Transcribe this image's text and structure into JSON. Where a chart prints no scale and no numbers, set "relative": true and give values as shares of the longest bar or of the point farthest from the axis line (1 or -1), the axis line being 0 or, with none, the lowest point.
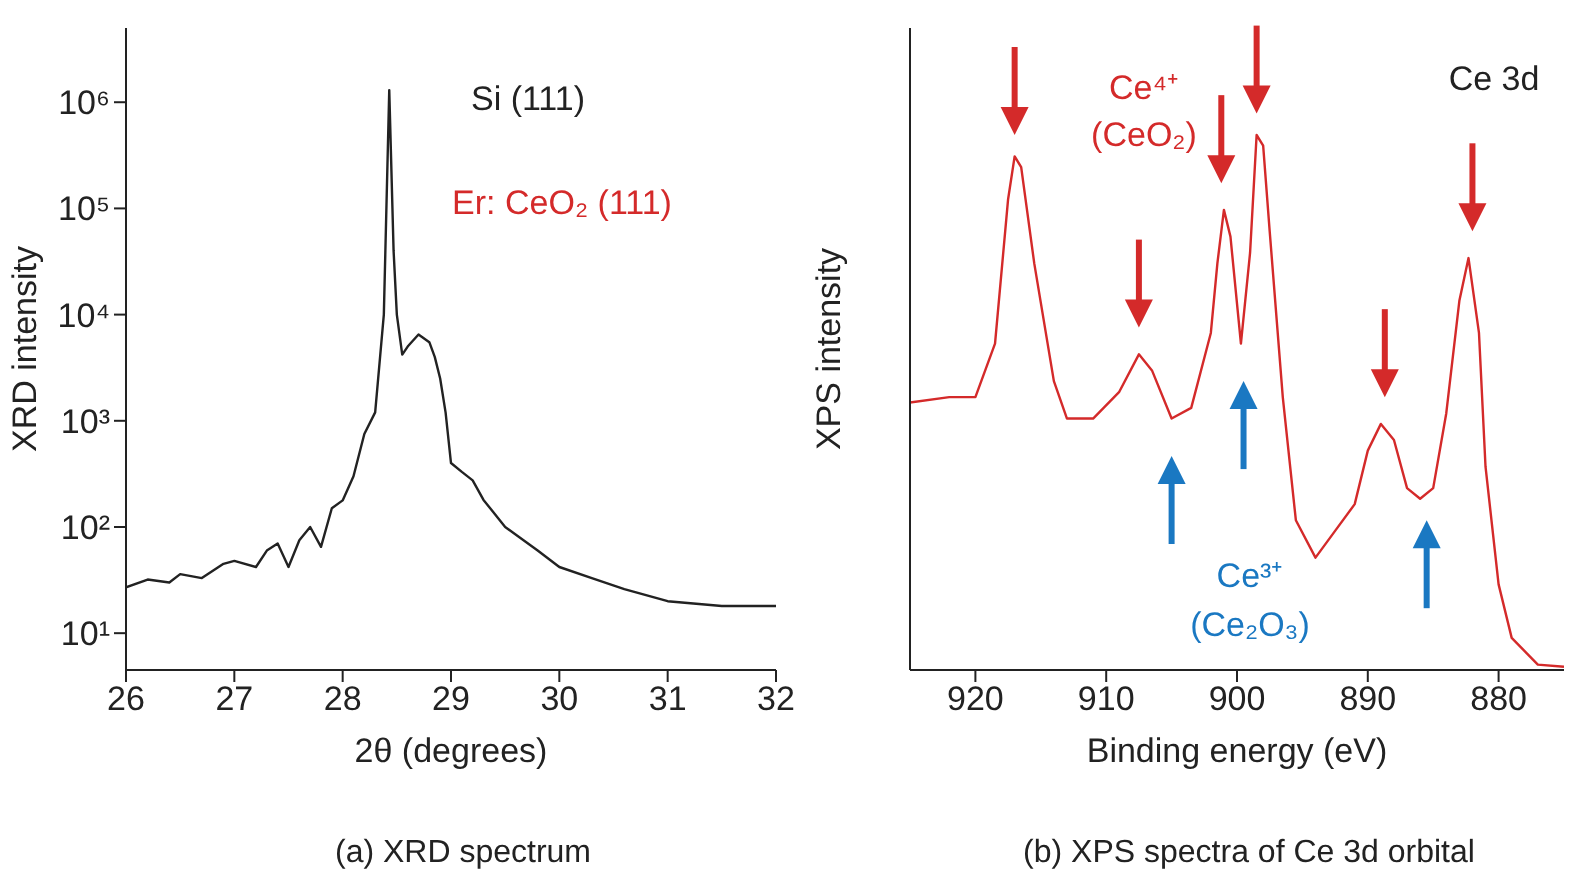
{
  "chart_data": [
    {
      "type": "line",
      "title": "(a) XRD spectrum",
      "xlabel": "2θ (degrees)",
      "ylabel": "XRD intensity",
      "log": "y",
      "xlim": [
        26,
        32
      ],
      "xticks": [
        26,
        27,
        28,
        29,
        30,
        31,
        32
      ],
      "ylim": [
        4.5,
        5000000
      ],
      "yticks": [
        {
          "value": 10,
          "label": "10¹"
        },
        {
          "value": 100,
          "label": "10²"
        },
        {
          "value": 1000,
          "label": "10³"
        },
        {
          "value": 10000,
          "label": "10⁴"
        },
        {
          "value": 100000,
          "label": "10⁵"
        },
        {
          "value": 1000000,
          "label": "10⁶"
        }
      ],
      "annotations": [
        "Si (111)",
        "Er: CeO₂ (111)"
      ],
      "series": [
        {
          "color": "#222222",
          "x": [
            26,
            26.2,
            26.4,
            26.5,
            26.7,
            26.9,
            27,
            27.2,
            27.3,
            27.4,
            27.5,
            27.6,
            27.7,
            27.8,
            27.9,
            28,
            28.1,
            28.2,
            28.3,
            28.38,
            28.43,
            28.47,
            28.5,
            28.55,
            28.6,
            28.7,
            28.8,
            28.85,
            28.9,
            28.95,
            29,
            29.1,
            29.2,
            29.3,
            29.5,
            29.8,
            30,
            30.3,
            30.6,
            31,
            31.5,
            32
          ],
          "values": [
            27,
            32,
            30,
            36,
            33,
            45,
            48,
            42,
            60,
            70,
            42,
            75,
            100,
            65,
            150,
            178,
            300,
            750,
            1200,
            10000,
            1300000,
            40000,
            10000,
            4200,
            5000,
            6500,
            5500,
            4000,
            2500,
            1200,
            400,
            330,
            275,
            180,
            100,
            60,
            42,
            33,
            26,
            20,
            18,
            18
          ]
        }
      ]
    },
    {
      "type": "line",
      "title": "(b) XPS spectra of Ce 3d orbital",
      "xlabel": "Binding energy (eV)",
      "ylabel": "XPS intensity",
      "relative": true,
      "tick_labels": "x",
      "xlim": [
        925,
        875
      ],
      "xticks": [
        920,
        910,
        900,
        890,
        880
      ],
      "annotations": [
        "Ce 3d",
        "Ce⁴⁺",
        "(CeO₂)",
        "Ce³⁺",
        "(Ce₂O₃)"
      ],
      "series": [
        {
          "color": "#d42a2a",
          "x": [
            925,
            922,
            920,
            918.5,
            917.5,
            917,
            916.5,
            915.5,
            914,
            913,
            911,
            909,
            907.5,
            906.5,
            905,
            903.5,
            902,
            901.5,
            901,
            900.5,
            899.7,
            899,
            898.5,
            898,
            897.5,
            896.5,
            895.5,
            894,
            892.5,
            891,
            890,
            889,
            888,
            887,
            886,
            885,
            884,
            883,
            882.3,
            881.5,
            881,
            880,
            879,
            877,
            875
          ],
          "values": [
            0.5,
            0.51,
            0.51,
            0.61,
            0.88,
            0.96,
            0.94,
            0.76,
            0.54,
            0.47,
            0.47,
            0.52,
            0.59,
            0.56,
            0.47,
            0.49,
            0.63,
            0.76,
            0.86,
            0.81,
            0.61,
            0.78,
            1,
            0.98,
            0.82,
            0.51,
            0.28,
            0.21,
            0.26,
            0.31,
            0.41,
            0.46,
            0.43,
            0.34,
            0.32,
            0.34,
            0.48,
            0.69,
            0.77,
            0.63,
            0.38,
            0.16,
            0.06,
            0.01,
            0.006
          ]
        }
      ]
    }
  ]
}
